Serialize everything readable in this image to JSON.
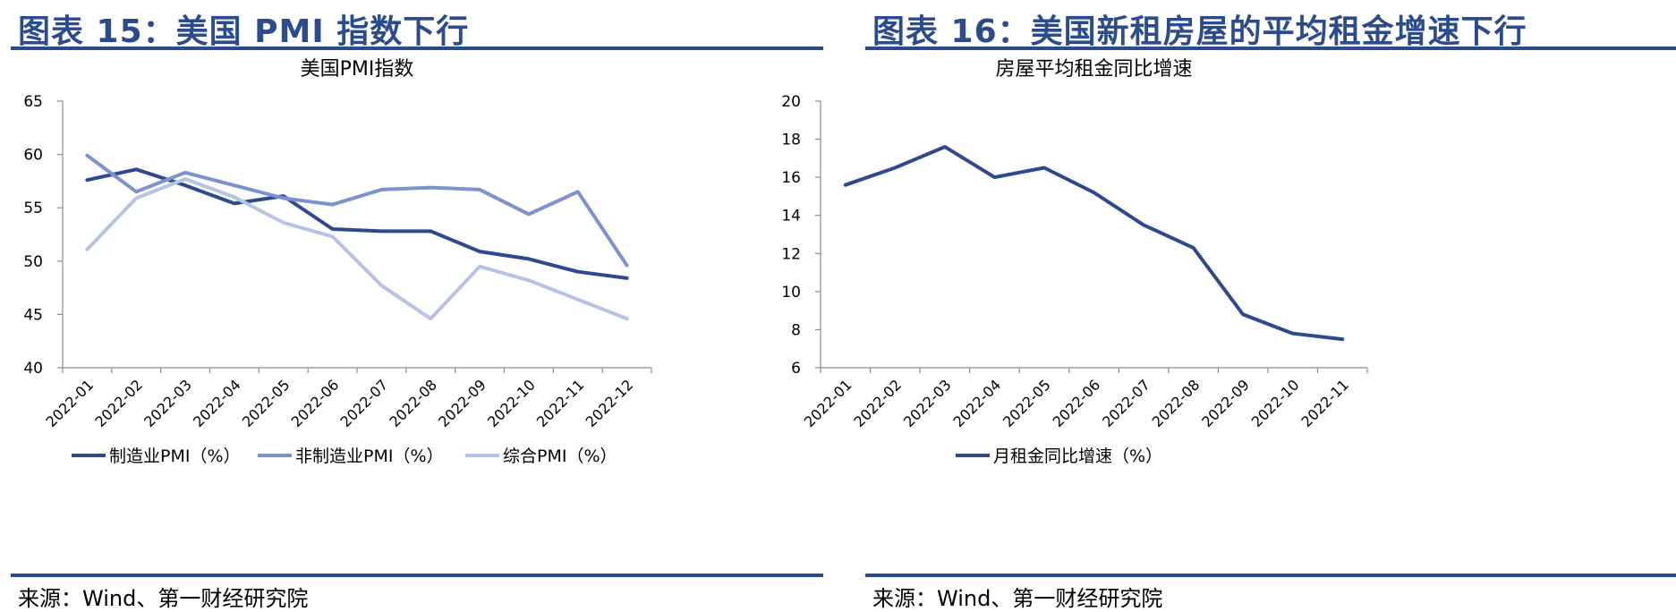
{
  "left_panel": {
    "figure_title": "图表 15：美国 PMI 指数下行",
    "source": "来源：Wind、第一财经研究院"
  },
  "right_panel": {
    "figure_title": "图表 16：美国新租房屋的平均租金增速下行",
    "source": "来源：Wind、第一财经研究院"
  },
  "chart_data": [
    {
      "type": "line",
      "title": "美国PMI指数",
      "xlabel": "",
      "ylabel": "",
      "categories": [
        "2022-01",
        "2022-02",
        "2022-03",
        "2022-04",
        "2022-05",
        "2022-06",
        "2022-07",
        "2022-08",
        "2022-09",
        "2022-10",
        "2022-11",
        "2022-12"
      ],
      "ylim": [
        40,
        65
      ],
      "yticks": [
        40,
        45,
        50,
        55,
        60,
        65
      ],
      "legend_position": "bottom",
      "grid": false,
      "series": [
        {
          "name": "制造业PMI（%）",
          "color": "#2e4a8c",
          "values": [
            57.6,
            58.6,
            57.1,
            55.4,
            56.1,
            53.0,
            52.8,
            52.8,
            50.9,
            50.2,
            49.0,
            48.4
          ]
        },
        {
          "name": "非制造业PMI（%）",
          "color": "#7b92cf",
          "values": [
            59.9,
            56.5,
            58.3,
            57.1,
            55.9,
            55.3,
            56.7,
            56.9,
            56.7,
            54.4,
            56.5,
            49.6
          ]
        },
        {
          "name": "综合PMI（%）",
          "color": "#b6c3e4",
          "values": [
            51.1,
            55.9,
            57.7,
            56.0,
            53.6,
            52.3,
            47.7,
            44.6,
            49.5,
            48.2,
            46.4,
            44.6
          ]
        }
      ]
    },
    {
      "type": "line",
      "title": "房屋平均租金同比增速",
      "xlabel": "",
      "ylabel": "",
      "categories": [
        "2022-01",
        "2022-02",
        "2022-03",
        "2022-04",
        "2022-05",
        "2022-06",
        "2022-07",
        "2022-08",
        "2022-09",
        "2022-10",
        "2022-11"
      ],
      "ylim": [
        6,
        20
      ],
      "yticks": [
        6,
        8,
        10,
        12,
        14,
        16,
        18,
        20
      ],
      "legend_position": "bottom",
      "grid": false,
      "series": [
        {
          "name": "月租金同比增速（%）",
          "color": "#2e4a8c",
          "values": [
            15.6,
            16.5,
            17.6,
            16.0,
            16.5,
            15.2,
            13.5,
            12.3,
            8.8,
            7.8,
            7.5
          ]
        }
      ]
    }
  ]
}
